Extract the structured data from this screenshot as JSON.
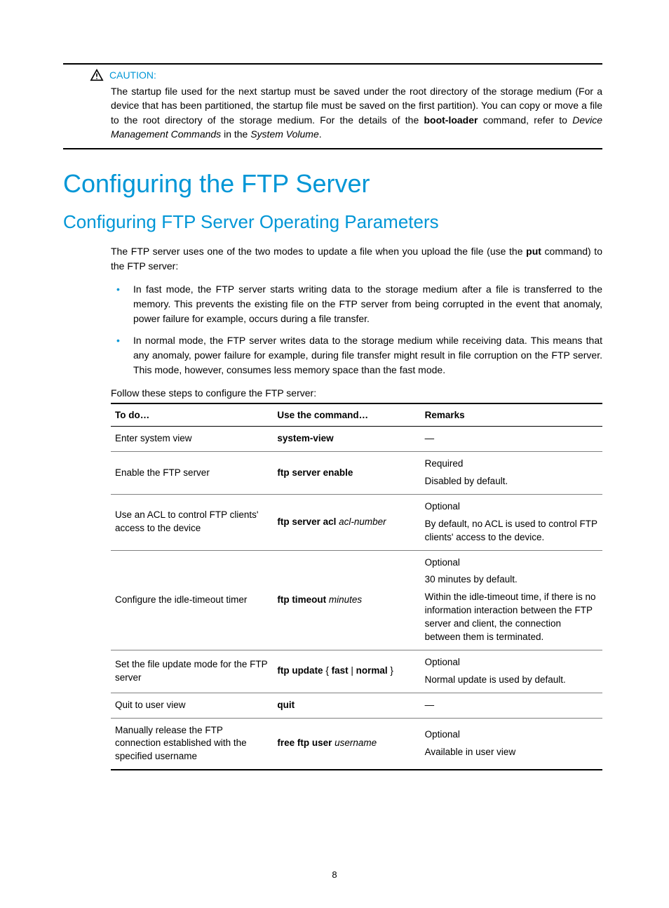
{
  "caution": {
    "label": "CAUTION:",
    "text_parts": [
      "The startup file used for the next startup must be saved under the root directory of the storage medium (For a device that has been partitioned, the startup file must be saved on the first partition). You can copy or move a file to the root directory of the storage medium. For the details of the ",
      "boot-loader",
      " command, refer to ",
      "Device Management Commands",
      " in the ",
      "System Volume",
      "."
    ]
  },
  "h1": "Configuring the FTP Server",
  "h2": "Configuring FTP Server Operating Parameters",
  "intro_parts": [
    "The FTP server uses one of the two modes to update a file when you upload the file (use the ",
    "put",
    " command) to the FTP server:"
  ],
  "bullets": [
    "In fast mode, the FTP server starts writing data to the storage medium after a file is transferred to the memory. This prevents the existing file on the FTP server from being corrupted in the event that anomaly, power failure for example, occurs during a file transfer.",
    "In normal mode, the FTP server writes data to the storage medium while receiving data. This means that any anomaly, power failure for example, during file transfer might result in file corruption on the FTP server. This mode, however, consumes less memory space than the fast mode."
  ],
  "table_intro": "Follow these steps to configure the FTP server:",
  "table": {
    "headers": [
      "To do…",
      "Use the command…",
      "Remarks"
    ],
    "rows": [
      {
        "todo": "Enter system view",
        "cmd": [
          {
            "t": "b",
            "v": "system-view"
          }
        ],
        "remarks": [
          "—"
        ]
      },
      {
        "todo": "Enable the FTP server",
        "cmd": [
          {
            "t": "b",
            "v": "ftp server enable"
          }
        ],
        "remarks": [
          "Required",
          "Disabled by default."
        ]
      },
      {
        "todo": "Use an ACL to control FTP clients' access to the device",
        "cmd": [
          {
            "t": "b",
            "v": "ftp server acl"
          },
          {
            "t": "p",
            "v": " "
          },
          {
            "t": "i",
            "v": "acl-number"
          }
        ],
        "remarks": [
          "Optional",
          "By default, no ACL is used to control FTP clients' access to the device."
        ]
      },
      {
        "todo": "Configure the idle-timeout timer",
        "cmd": [
          {
            "t": "b",
            "v": "ftp timeout"
          },
          {
            "t": "p",
            "v": " "
          },
          {
            "t": "i",
            "v": "minutes"
          }
        ],
        "remarks": [
          "Optional",
          "30 minutes by default.",
          "Within the idle-timeout time, if there is no information interaction between the FTP server and client, the connection between them is terminated."
        ]
      },
      {
        "todo": "Set the file update mode for the FTP server",
        "cmd": [
          {
            "t": "b",
            "v": "ftp update"
          },
          {
            "t": "p",
            "v": " { "
          },
          {
            "t": "b",
            "v": "fast"
          },
          {
            "t": "p",
            "v": " | "
          },
          {
            "t": "b",
            "v": "normal"
          },
          {
            "t": "p",
            "v": " }"
          }
        ],
        "remarks": [
          "Optional",
          "Normal update is used by default."
        ]
      },
      {
        "todo": "Quit to user view",
        "cmd": [
          {
            "t": "b",
            "v": "quit"
          }
        ],
        "remarks": [
          "—"
        ]
      },
      {
        "todo": "Manually release the FTP connection established with the specified username",
        "cmd": [
          {
            "t": "b",
            "v": "free ftp user"
          },
          {
            "t": "p",
            "v": " "
          },
          {
            "t": "i",
            "v": "username"
          }
        ],
        "remarks": [
          "Optional",
          "Available in user view"
        ]
      }
    ]
  },
  "page_number": "8",
  "colors": {
    "accent": "#0096d6",
    "border_strong": "#000000",
    "border_light": "#808080",
    "text": "#000000",
    "background": "#ffffff"
  }
}
